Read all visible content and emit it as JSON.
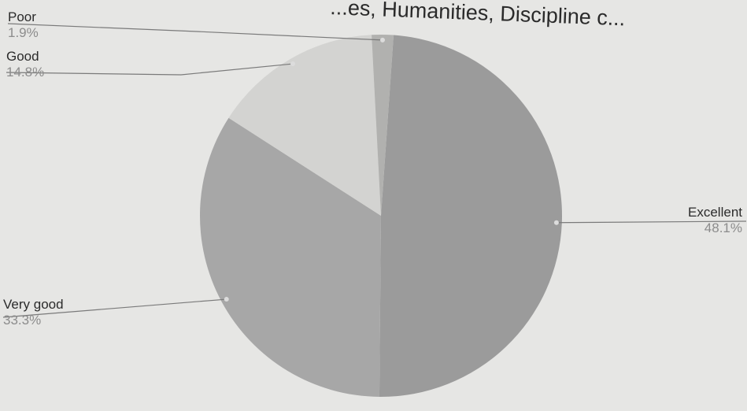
{
  "chart_data": {
    "type": "pie",
    "title": "...es, Humanities, Discipline c...",
    "slices": [
      {
        "label": "Excellent",
        "percent_label": "48.1%",
        "value": 48.1,
        "color": "#9b9b9b"
      },
      {
        "label": "Very good",
        "percent_label": "33.3%",
        "value": 33.3,
        "color": "#a7a7a7"
      },
      {
        "label": "Good",
        "percent_label": "14.8%",
        "value": 14.8,
        "color": "#d3d3d1"
      },
      {
        "label": "Poor",
        "percent_label": "1.9%",
        "value": 1.9,
        "color": "#b1b1af"
      }
    ]
  }
}
